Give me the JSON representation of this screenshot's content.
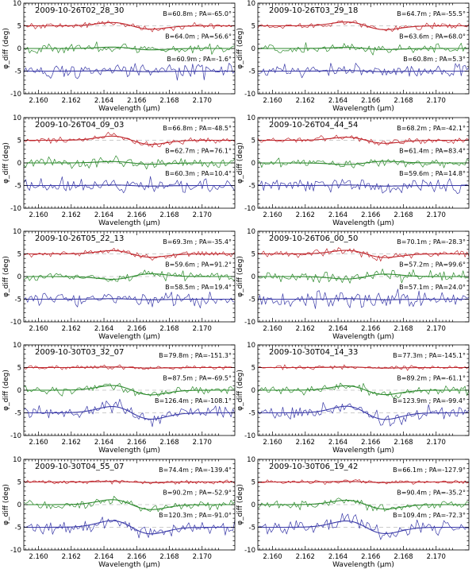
{
  "chart_data": {
    "type": "line",
    "panels": [
      {
        "title": "2009-10-26T02_28_30",
        "annotations": [
          "B=60.8m ; PA=-65.0°",
          "B=64.0m ; PA=56.6°",
          "B=60.9m ; PA=-1.6°"
        ],
        "amps": [
          -1.2,
          -0.5,
          -0.2
        ],
        "noise": [
          0.4,
          0.7,
          1.0
        ]
      },
      {
        "title": "2009-10-26T03_29_18",
        "annotations": [
          "B=64.7m ; PA=-55.5°",
          "B=63.6m ; PA=68.0°",
          "B=60.8m ; PA=5.3°"
        ],
        "amps": [
          -1.4,
          -0.4,
          -0.2
        ],
        "noise": [
          0.4,
          0.6,
          0.9
        ]
      },
      {
        "title": "2009-10-26T04_09_03",
        "annotations": [
          "B=66.8m ; PA=-48.5°",
          "B=62.7m ; PA=76.1°",
          "B=60.3m ; PA=10.4°"
        ],
        "amps": [
          -1.5,
          -0.5,
          -0.2
        ],
        "noise": [
          0.4,
          0.7,
          1.0
        ]
      },
      {
        "title": "2009-10-26T04_44_54",
        "annotations": [
          "B=68.2m ; PA=-42.1°",
          "B=61.4m ; PA=83.4°",
          "B=59.6m ; PA=14.8°"
        ],
        "amps": [
          -1.1,
          0.6,
          -0.2
        ],
        "noise": [
          0.4,
          0.6,
          1.0
        ]
      },
      {
        "title": "2009-10-26T05_22_13",
        "annotations": [
          "B=69.3m ; PA=-35.4°",
          "B=59.6m ; PA=91.2°",
          "B=58.5m ; PA=19.4°"
        ],
        "amps": [
          -1.2,
          1.0,
          -0.2
        ],
        "noise": [
          0.4,
          0.6,
          0.9
        ]
      },
      {
        "title": "2009-10-26T06_00_50",
        "annotations": [
          "B=70.1m ; PA=-28.3°",
          "B=57.2m ; PA=99.6°",
          "B=57.1m ; PA=24.0°"
        ],
        "amps": [
          -1.3,
          0.9,
          -0.2
        ],
        "noise": [
          0.5,
          0.8,
          1.3
        ]
      },
      {
        "title": "2009-10-30T03_32_07",
        "annotations": [
          "B=79.8m ; PA=-151.3°",
          "B=87.5m ; PA=-69.5°",
          "B=126.4m ; PA=-108.1°"
        ],
        "amps": [
          -0.2,
          -1.7,
          -2.3
        ],
        "noise": [
          0.3,
          0.6,
          0.9
        ]
      },
      {
        "title": "2009-10-30T04_14_33",
        "annotations": [
          "B=77.3m ; PA=-145.1°",
          "B=89.2m ; PA=-61.1°",
          "B=123.9m ; PA=-99.4°"
        ],
        "amps": [
          -0.2,
          -1.6,
          -2.4
        ],
        "noise": [
          0.3,
          0.6,
          0.9
        ]
      },
      {
        "title": "2009-10-30T04_55_07",
        "annotations": [
          "B=74.4m ; PA=-139.4°",
          "B=90.2m ; PA=-52.9°",
          "B=120.3m ; PA=-91.0°"
        ],
        "amps": [
          -0.2,
          -1.8,
          -2.4
        ],
        "noise": [
          0.3,
          0.6,
          0.9
        ]
      },
      {
        "title": "2009-10-30T06_19_42",
        "annotations": [
          "B=66.1m ; PA=-127.9°",
          "B=90.4m ; PA=-35.2°",
          "B=109.4m ; PA=-72.3°"
        ],
        "amps": [
          -0.2,
          -1.6,
          -2.3
        ],
        "noise": [
          0.3,
          0.6,
          0.9
        ]
      }
    ],
    "series": [
      {
        "color": "#c0272d",
        "offset": 5
      },
      {
        "color": "#2e8b2e",
        "offset": 0
      },
      {
        "color": "#3a3aa8",
        "offset": -5
      }
    ],
    "xlabel": "Wavelength (μm)",
    "ylabel": "φ_diff (deg)",
    "xlim": [
      2.1591,
      2.172
    ],
    "ylim": [
      -10,
      10
    ],
    "xticks": [
      "2.160",
      "2.162",
      "2.164",
      "2.166",
      "2.168",
      "2.170"
    ],
    "yticks": [
      -10,
      -5,
      0,
      5,
      10
    ],
    "grid": "dashed at y = -5, 0, 5"
  }
}
